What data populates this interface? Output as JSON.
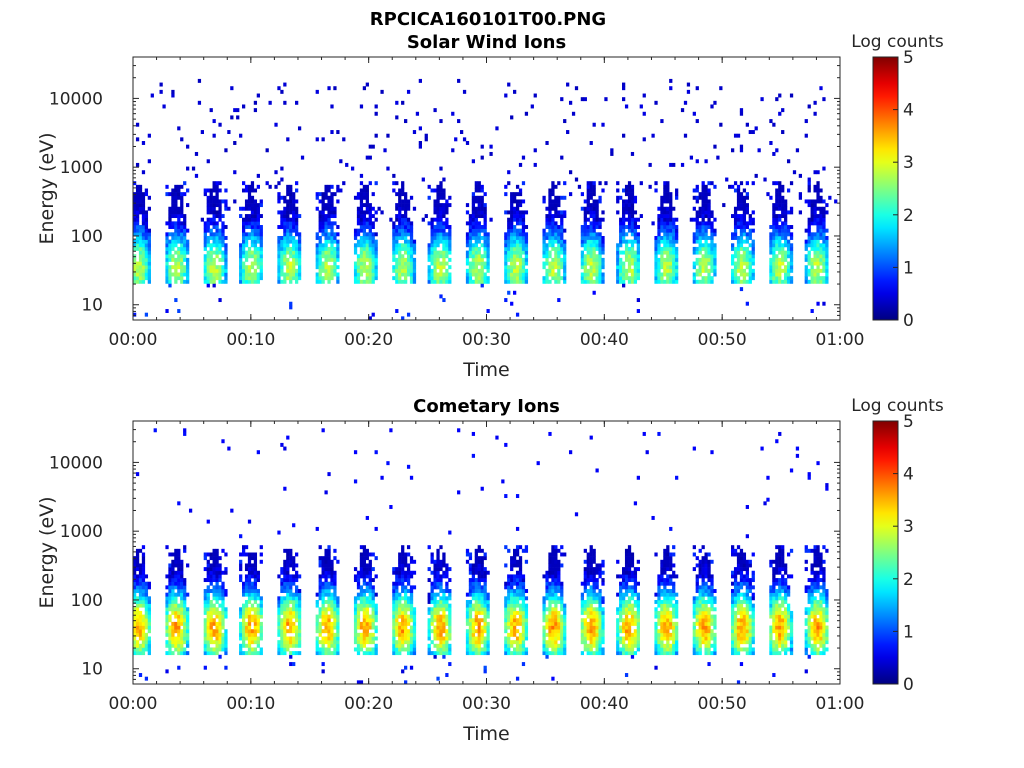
{
  "figure": {
    "main_title": "RPCICA160101T00.PNG"
  },
  "chart_data": [
    {
      "type": "heatmap",
      "title": "Solar Wind Ions",
      "xlabel": "Time",
      "ylabel": "Energy (eV)",
      "x_ticks": [
        "00:00",
        "00:10",
        "00:20",
        "00:30",
        "00:40",
        "00:50",
        "01:00"
      ],
      "x_range_minutes": [
        0,
        60
      ],
      "y_scale": "log",
      "y_ticks": [
        10,
        100,
        1000,
        10000
      ],
      "y_tick_labels": [
        "10",
        "100",
        "1000",
        "10000"
      ],
      "y_range_eV": [
        6,
        40000
      ],
      "colorbar": {
        "label": "Log counts",
        "range": [
          0,
          5
        ],
        "ticks": [
          "0",
          "1",
          "2",
          "3",
          "4",
          "5"
        ],
        "colormap": "jet"
      },
      "sweep_period_minutes": 3.2,
      "sweep_count": 19,
      "core_energy_range_eV": [
        22,
        600
      ],
      "core_peak_energy_eV": 35,
      "core_peak_log_counts": 2.8,
      "sparse_noise_log_counts": 0.3,
      "sparse_noise_energy_range_eV": [
        150,
        20000
      ]
    },
    {
      "type": "heatmap",
      "title": "Cometary Ions",
      "xlabel": "Time",
      "ylabel": "Energy (eV)",
      "x_ticks": [
        "00:00",
        "00:10",
        "00:20",
        "00:30",
        "00:40",
        "00:50",
        "01:00"
      ],
      "x_range_minutes": [
        0,
        60
      ],
      "y_scale": "log",
      "y_ticks": [
        10,
        100,
        1000,
        10000
      ],
      "y_tick_labels": [
        "10",
        "100",
        "1000",
        "10000"
      ],
      "y_range_eV": [
        6,
        40000
      ],
      "colorbar": {
        "label": "Log counts",
        "range": [
          0,
          5
        ],
        "ticks": [
          "0",
          "1",
          "2",
          "3",
          "4",
          "5"
        ],
        "colormap": "jet"
      },
      "sweep_period_minutes": 3.2,
      "sweep_count": 19,
      "core_energy_range_eV": [
        18,
        600
      ],
      "core_peak_energy_eV": 40,
      "core_peak_log_counts": 3.6,
      "sparse_noise_log_counts": 0.5,
      "sparse_noise_energy_range_eV": [
        800,
        30000
      ]
    }
  ]
}
